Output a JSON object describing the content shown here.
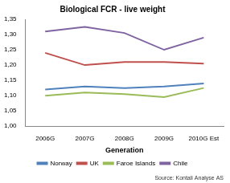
{
  "chart_data": {
    "type": "line",
    "title": "Biological FCR - live weight",
    "x_label": "Generation",
    "source": "Source: Kontali Analyse AS",
    "categories": [
      "2006G",
      "2007G",
      "2008G",
      "2009G",
      "2010G Est"
    ],
    "series": [
      {
        "name": "Norway",
        "color": "#4f81bd",
        "values": [
          1.12,
          1.13,
          1.125,
          1.13,
          1.14
        ]
      },
      {
        "name": "UK",
        "color": "#c0504d",
        "values": [
          1.24,
          1.2,
          1.21,
          1.21,
          1.205
        ]
      },
      {
        "name": "Faroe Islands",
        "color": "#9bbb59",
        "values": [
          1.1,
          1.11,
          1.105,
          1.095,
          1.125
        ]
      },
      {
        "name": "Chile",
        "color": "#8064a2",
        "values": [
          1.31,
          1.325,
          1.305,
          1.25,
          1.29
        ]
      }
    ],
    "ylim": [
      1.0,
      1.35
    ],
    "yticks": [
      {
        "value": 1.0,
        "label": "1,00"
      },
      {
        "value": 1.05,
        "label": "1,05"
      },
      {
        "value": 1.1,
        "label": "1,10"
      },
      {
        "value": 1.15,
        "label": "1,15"
      },
      {
        "value": 1.2,
        "label": "1,20"
      },
      {
        "value": 1.25,
        "label": "1,25"
      },
      {
        "value": 1.3,
        "label": "1,30"
      },
      {
        "value": 1.35,
        "label": "1,35"
      }
    ],
    "grid": false,
    "legend": "bottom"
  }
}
